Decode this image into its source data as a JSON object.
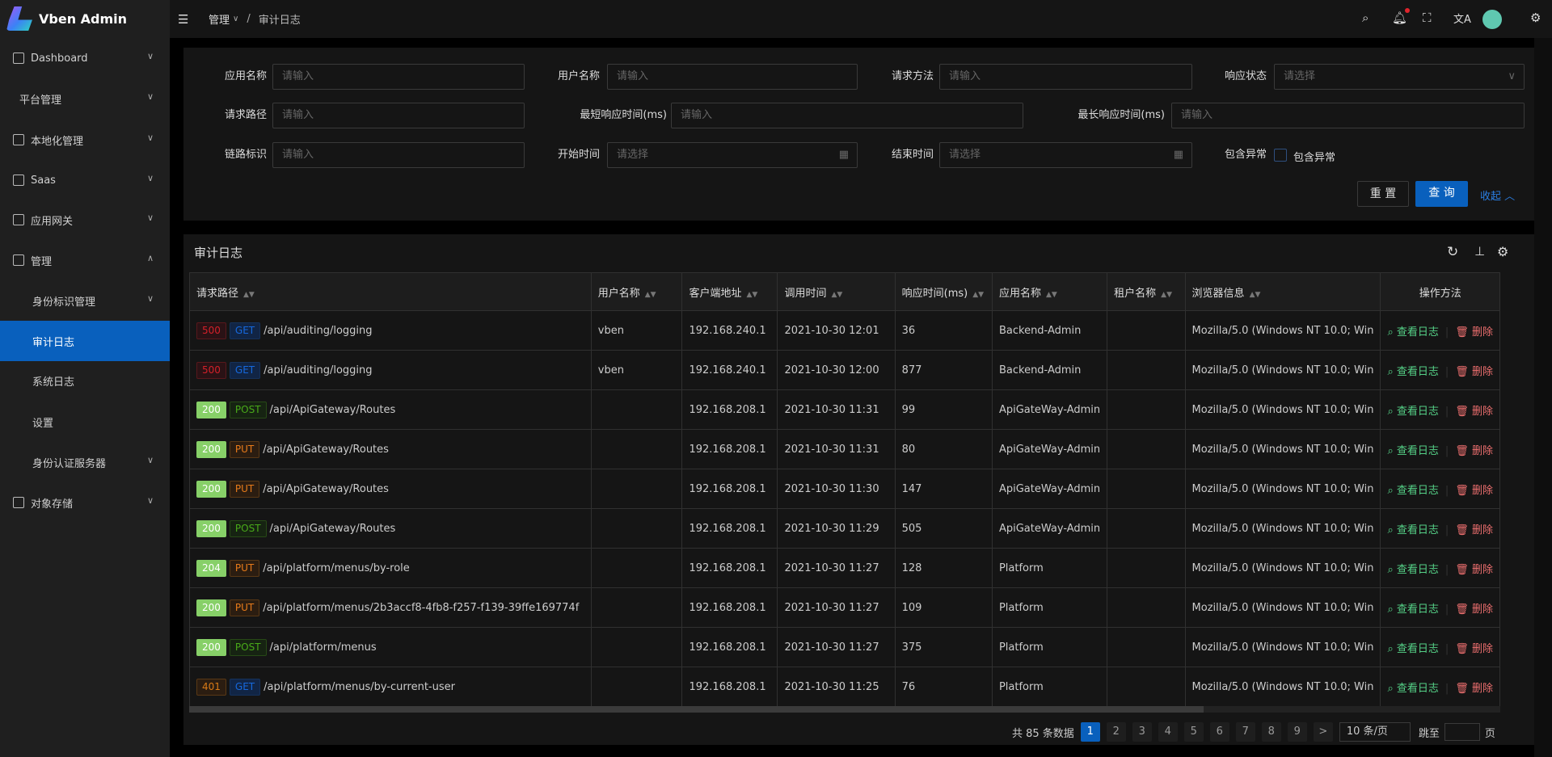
{
  "app": {
    "title": "Vben Admin"
  },
  "sidebar": {
    "items": [
      {
        "label": "Dashboard",
        "icon": "dashboard-icon"
      },
      {
        "label": "平台管理"
      },
      {
        "label": "本地化管理",
        "icon": "localization-icon"
      },
      {
        "label": "Saas",
        "icon": "saas-icon"
      },
      {
        "label": "应用网关",
        "icon": "gateway-icon"
      },
      {
        "label": "管理",
        "icon": "manage-icon"
      },
      {
        "label": "身份标识管理"
      },
      {
        "label": "审计日志"
      },
      {
        "label": "系统日志"
      },
      {
        "label": "设置"
      },
      {
        "label": "身份认证服务器"
      },
      {
        "label": "对象存储",
        "icon": "file-icon"
      }
    ]
  },
  "header": {
    "breadcrumb": [
      "管理",
      "审计日志"
    ],
    "separator": "/"
  },
  "form": {
    "app_name": {
      "label": "应用名称",
      "placeholder": "请输入"
    },
    "user_name": {
      "label": "用户名称",
      "placeholder": "请输入"
    },
    "method": {
      "label": "请求方法",
      "placeholder": "请输入"
    },
    "status": {
      "label": "响应状态",
      "placeholder": "请选择"
    },
    "path": {
      "label": "请求路径",
      "placeholder": "请输入"
    },
    "min_time": {
      "label": "最短响应时间(ms)",
      "placeholder": "请输入"
    },
    "max_time": {
      "label": "最长响应时间(ms)",
      "placeholder": "请输入"
    },
    "trace": {
      "label": "链路标识",
      "placeholder": "请输入"
    },
    "start": {
      "label": "开始时间",
      "placeholder": "请选择"
    },
    "end": {
      "label": "结束时间",
      "placeholder": "请选择"
    },
    "exception": {
      "label": "包含异常",
      "checkbox_label": "包含异常",
      "checked": false
    },
    "reset": "重 置",
    "query": "查 询",
    "collapse": "收起"
  },
  "table": {
    "title": "审计日志",
    "columns": [
      "请求路径",
      "用户名称",
      "客户端地址",
      "调用时间",
      "响应时间(ms)",
      "应用名称",
      "租户名称",
      "浏览器信息",
      "操作方法"
    ],
    "action_view": "查看日志",
    "action_delete": "删除",
    "rows": [
      {
        "status": "500",
        "method": "GET",
        "path": "/api/auditing/logging",
        "user": "vben",
        "ip": "192.168.240.1",
        "time": "2021-10-30 12:01",
        "ms": "36",
        "app": "Backend-Admin",
        "tenant": "",
        "browser": "Mozilla/5.0 (Windows NT 10.0; Win"
      },
      {
        "status": "500",
        "method": "GET",
        "path": "/api/auditing/logging",
        "user": "vben",
        "ip": "192.168.240.1",
        "time": "2021-10-30 12:00",
        "ms": "877",
        "app": "Backend-Admin",
        "tenant": "",
        "browser": "Mozilla/5.0 (Windows NT 10.0; Win"
      },
      {
        "status": "200",
        "method": "POST",
        "path": "/api/ApiGateway/Routes",
        "user": "",
        "ip": "192.168.208.1",
        "time": "2021-10-30 11:31",
        "ms": "99",
        "app": "ApiGateWay-Admin",
        "tenant": "",
        "browser": "Mozilla/5.0 (Windows NT 10.0; Win"
      },
      {
        "status": "200",
        "method": "PUT",
        "path": "/api/ApiGateway/Routes",
        "user": "",
        "ip": "192.168.208.1",
        "time": "2021-10-30 11:31",
        "ms": "80",
        "app": "ApiGateWay-Admin",
        "tenant": "",
        "browser": "Mozilla/5.0 (Windows NT 10.0; Win"
      },
      {
        "status": "200",
        "method": "PUT",
        "path": "/api/ApiGateway/Routes",
        "user": "",
        "ip": "192.168.208.1",
        "time": "2021-10-30 11:30",
        "ms": "147",
        "app": "ApiGateWay-Admin",
        "tenant": "",
        "browser": "Mozilla/5.0 (Windows NT 10.0; Win"
      },
      {
        "status": "200",
        "method": "POST",
        "path": "/api/ApiGateway/Routes",
        "user": "",
        "ip": "192.168.208.1",
        "time": "2021-10-30 11:29",
        "ms": "505",
        "app": "ApiGateWay-Admin",
        "tenant": "",
        "browser": "Mozilla/5.0 (Windows NT 10.0; Win"
      },
      {
        "status": "204",
        "method": "PUT",
        "path": "/api/platform/menus/by-role",
        "user": "",
        "ip": "192.168.208.1",
        "time": "2021-10-30 11:27",
        "ms": "128",
        "app": "Platform",
        "tenant": "",
        "browser": "Mozilla/5.0 (Windows NT 10.0; Win"
      },
      {
        "status": "200",
        "method": "PUT",
        "path": "/api/platform/menus/2b3accf8-4fb8-f257-f139-39ffe169774f",
        "user": "",
        "ip": "192.168.208.1",
        "time": "2021-10-30 11:27",
        "ms": "109",
        "app": "Platform",
        "tenant": "",
        "browser": "Mozilla/5.0 (Windows NT 10.0; Win"
      },
      {
        "status": "200",
        "method": "POST",
        "path": "/api/platform/menus",
        "user": "",
        "ip": "192.168.208.1",
        "time": "2021-10-30 11:27",
        "ms": "375",
        "app": "Platform",
        "tenant": "",
        "browser": "Mozilla/5.0 (Windows NT 10.0; Win"
      },
      {
        "status": "401",
        "method": "GET",
        "path": "/api/platform/menus/by-current-user",
        "user": "",
        "ip": "192.168.208.1",
        "time": "2021-10-30 11:25",
        "ms": "76",
        "app": "Platform",
        "tenant": "",
        "browser": "Mozilla/5.0 (Windows NT 10.0; Win"
      }
    ]
  },
  "pagination": {
    "total": "共 85 条数据",
    "pages": [
      "1",
      "2",
      "3",
      "4",
      "5",
      "6",
      "7",
      "8",
      "9"
    ],
    "current": "1",
    "next": ">",
    "page_size": "10 条/页",
    "jump_label": "跳至",
    "jump_suffix": "页"
  },
  "colors": {
    "primary": "#0960bd",
    "success": "#55d187",
    "danger": "#ed6f6f",
    "status_2xx": "#87d068",
    "GET": "#1677ff",
    "POST": "#52c41a",
    "PUT": "#fa8c16"
  }
}
